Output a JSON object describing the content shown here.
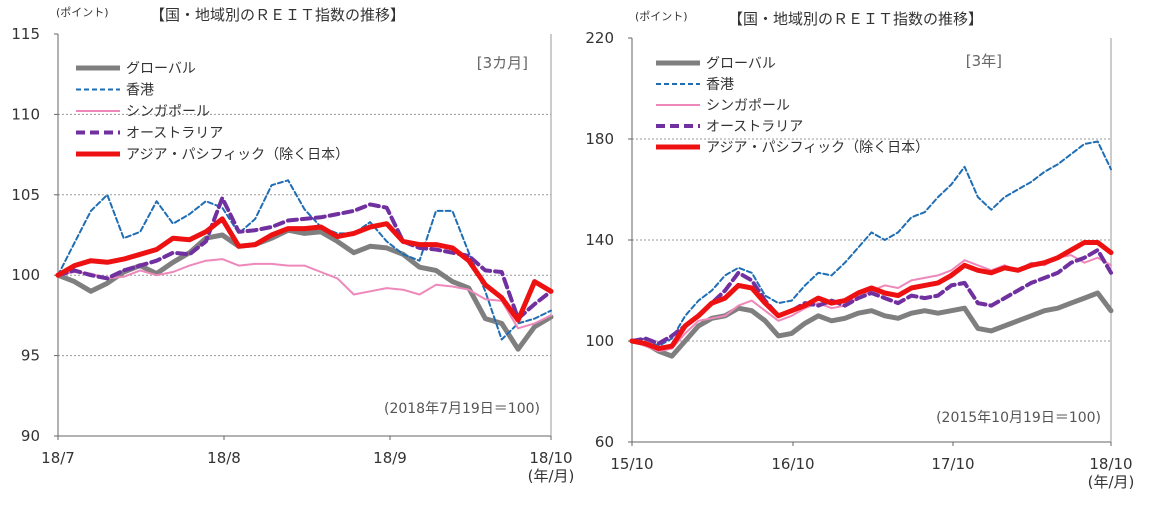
{
  "colors": {
    "global": "#7f7f7f",
    "hongkong": "#1f6eb4",
    "singapore": "#ee88bb",
    "australia": "#7030a0",
    "asiapacific": "#ee1111"
  },
  "chart_data": [
    {
      "type": "line",
      "title": "【国・地域別のＲＥＩＴ指数の推移】",
      "unit_label": "(ポイント)",
      "period_label": "[3カ月]",
      "base_note": "(2018年7月19日＝100)",
      "x_tick_labels": [
        "18/7",
        "18/8",
        "18/9",
        "18/10"
      ],
      "x_unit_label": "(年/月)",
      "ylim": [
        90,
        115
      ],
      "y_ticks": [
        90,
        95,
        100,
        105,
        110,
        115
      ],
      "gridlines": [
        95,
        100,
        105,
        110
      ],
      "legend_position": "top-left",
      "x_count": 31,
      "series": [
        {
          "name": "グローバル",
          "key": "global",
          "style": "solid-thick",
          "values": [
            100,
            99.6,
            99.0,
            99.5,
            100.2,
            100.6,
            100.1,
            100.8,
            101.4,
            102.3,
            102.5,
            101.8,
            101.9,
            102.3,
            102.8,
            102.6,
            102.7,
            102.1,
            101.4,
            101.8,
            101.7,
            101.3,
            100.5,
            100.3,
            99.6,
            99.2,
            97.3,
            97.0,
            95.4,
            96.8,
            97.4
          ]
        },
        {
          "name": "香港",
          "key": "hongkong",
          "style": "dotted",
          "values": [
            100,
            102.0,
            104.0,
            105.0,
            102.3,
            102.7,
            104.6,
            103.2,
            103.8,
            104.6,
            104.2,
            102.6,
            103.5,
            105.6,
            105.9,
            104.1,
            103.0,
            102.6,
            102.6,
            103.3,
            102.1,
            101.3,
            100.9,
            104.0,
            104.0,
            101.4,
            99.0,
            96.0,
            97.0,
            97.3,
            97.8
          ]
        },
        {
          "name": "シンガポール",
          "key": "singapore",
          "style": "solid",
          "values": [
            100,
            100.2,
            100.1,
            99.8,
            99.9,
            100.3,
            100.0,
            100.2,
            100.6,
            100.9,
            101.0,
            100.6,
            100.7,
            100.7,
            100.6,
            100.6,
            100.2,
            99.8,
            98.8,
            99.0,
            99.2,
            99.1,
            98.8,
            99.4,
            99.3,
            99.1,
            98.5,
            98.4,
            96.7,
            97.0,
            97.5
          ]
        },
        {
          "name": "オーストラリア",
          "key": "australia",
          "style": "dashed",
          "values": [
            100,
            100.3,
            100.0,
            99.8,
            100.3,
            100.6,
            100.9,
            101.4,
            101.3,
            102.1,
            104.8,
            102.7,
            102.8,
            103.0,
            103.4,
            103.5,
            103.6,
            103.8,
            104.0,
            104.4,
            104.2,
            102.1,
            101.7,
            101.6,
            101.4,
            101.2,
            100.3,
            100.2,
            97.3,
            98.2,
            99.0
          ]
        },
        {
          "name": "アジア・パシフィック（除く日本）",
          "key": "asiapacific",
          "style": "solid-thick",
          "values": [
            100,
            100.6,
            100.9,
            100.8,
            101.0,
            101.3,
            101.6,
            102.3,
            102.2,
            102.7,
            103.5,
            101.8,
            101.9,
            102.5,
            102.9,
            102.9,
            103.0,
            102.4,
            102.6,
            103.0,
            103.2,
            102.1,
            101.9,
            101.9,
            101.7,
            100.9,
            99.4,
            98.6,
            97.2,
            99.6,
            99.0
          ]
        }
      ]
    },
    {
      "type": "line",
      "title": "【国・地域別のＲＥＩＴ指数の推移】",
      "unit_label": "(ポイント)",
      "period_label": "[3年]",
      "base_note": "(2015年10月19日＝100)",
      "x_tick_labels": [
        "15/10",
        "16/10",
        "17/10",
        "18/10"
      ],
      "x_unit_label": "(年/月)",
      "ylim": [
        60,
        220
      ],
      "y_ticks": [
        60,
        100,
        140,
        180,
        220
      ],
      "gridlines": [
        100,
        140,
        180
      ],
      "legend_position": "top-left",
      "x_count": 37,
      "series": [
        {
          "name": "グローバル",
          "key": "global",
          "style": "solid-thick",
          "values": [
            100,
            99.0,
            96.0,
            94.0,
            100.0,
            106.0,
            109.0,
            110.0,
            113.0,
            112.0,
            108.0,
            102.0,
            103.0,
            107.0,
            110.0,
            108.0,
            109.0,
            111.0,
            112.0,
            110.0,
            109.0,
            111.0,
            112.0,
            111.0,
            112.0,
            113.0,
            105.0,
            104.0,
            106.0,
            108.0,
            110.0,
            112.0,
            113.0,
            115.0,
            117.0,
            119.0,
            112.0
          ]
        },
        {
          "name": "香港",
          "key": "hongkong",
          "style": "dotted",
          "values": [
            100,
            101.0,
            98.0,
            101.0,
            110.0,
            116.0,
            120.0,
            126.0,
            129.0,
            127.0,
            118.0,
            115.0,
            116.0,
            122.0,
            127.0,
            126.0,
            131.0,
            137.0,
            143.0,
            140.0,
            143.0,
            149.0,
            151.0,
            157.0,
            162.0,
            169.0,
            157.0,
            152.0,
            157.0,
            160.0,
            163.0,
            167.0,
            170.0,
            174.0,
            178.0,
            179.0,
            168.0
          ]
        },
        {
          "name": "シンガポール",
          "key": "singapore",
          "style": "solid",
          "values": [
            100,
            98.0,
            96.0,
            97.0,
            103.0,
            108.0,
            109.0,
            110.0,
            114.0,
            116.0,
            112.0,
            108.0,
            110.0,
            113.0,
            115.0,
            113.0,
            114.0,
            117.0,
            120.0,
            122.0,
            121.0,
            124.0,
            125.0,
            126.0,
            128.0,
            132.0,
            130.0,
            128.0,
            130.0,
            128.0,
            131.0,
            130.0,
            133.0,
            134.0,
            131.0,
            133.0,
            130.0
          ]
        },
        {
          "name": "オーストラリア",
          "key": "australia",
          "style": "dashed",
          "values": [
            100,
            101.0,
            99.0,
            102.0,
            106.0,
            110.0,
            115.0,
            120.0,
            127.0,
            124.0,
            116.0,
            110.0,
            112.0,
            115.0,
            114.0,
            116.0,
            114.0,
            117.0,
            119.0,
            117.0,
            115.0,
            118.0,
            117.0,
            118.0,
            122.0,
            123.0,
            115.0,
            114.0,
            117.0,
            120.0,
            123.0,
            125.0,
            127.0,
            131.0,
            133.0,
            136.0,
            127.0
          ]
        },
        {
          "name": "アジア・パシフィック（除く日本）",
          "key": "asiapacific",
          "style": "solid-thick",
          "values": [
            100,
            99.0,
            97.0,
            98.0,
            106.0,
            110.0,
            115.0,
            117.0,
            122.0,
            121.0,
            115.0,
            110.0,
            112.0,
            114.0,
            117.0,
            115.0,
            116.0,
            119.0,
            121.0,
            119.0,
            118.0,
            121.0,
            122.0,
            123.0,
            126.0,
            130.0,
            128.0,
            127.0,
            129.0,
            128.0,
            130.0,
            131.0,
            133.0,
            136.0,
            139.0,
            139.0,
            135.0
          ]
        }
      ]
    }
  ]
}
